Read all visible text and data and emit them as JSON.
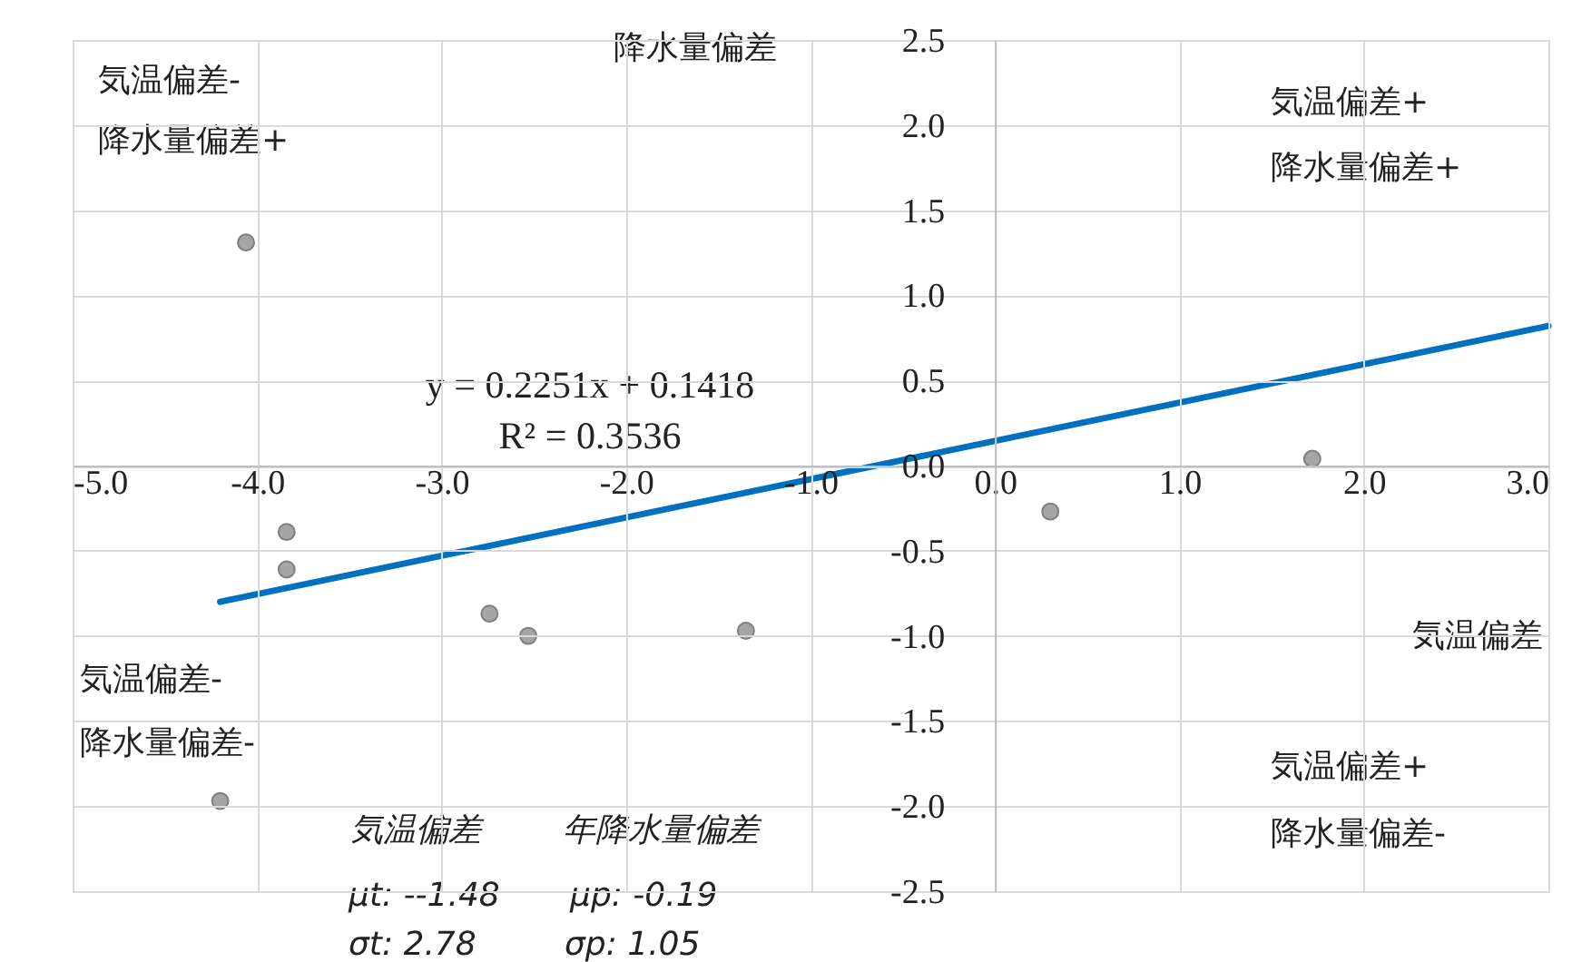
{
  "chart_data": {
    "type": "scatter",
    "xlabel": "気温偏差",
    "ylabel": "降水量偏差",
    "xlim": [
      -5,
      3
    ],
    "ylim": [
      -2.5,
      2.5
    ],
    "xticks": [
      {
        "value": -5,
        "label": "-5.0"
      },
      {
        "value": -4,
        "label": "-4.0"
      },
      {
        "value": -3,
        "label": "-3.0"
      },
      {
        "value": -2,
        "label": "-2.0"
      },
      {
        "value": -1,
        "label": "-1.0"
      },
      {
        "value": 0,
        "label": "0.0"
      },
      {
        "value": 1,
        "label": "1.0"
      },
      {
        "value": 2,
        "label": "2.0"
      },
      {
        "value": 3,
        "label": "3.0"
      }
    ],
    "yticks": [
      {
        "value": -2.5,
        "label": "-2.5"
      },
      {
        "value": -2,
        "label": "-2.0"
      },
      {
        "value": -1.5,
        "label": "-1.5"
      },
      {
        "value": -1,
        "label": "-1.0"
      },
      {
        "value": -0.5,
        "label": "-0.5"
      },
      {
        "value": 0,
        "label": "0.0"
      },
      {
        "value": 0.5,
        "label": "0.5"
      },
      {
        "value": 1,
        "label": "1.0"
      },
      {
        "value": 1.5,
        "label": "1.5"
      },
      {
        "value": 2,
        "label": "2.0"
      },
      {
        "value": 2.5,
        "label": "2.5"
      }
    ],
    "grid": true,
    "marker": "circle",
    "series": [
      {
        "color": "#a5a5a5",
        "x": [
          -4.06,
          -3.84,
          -3.84,
          -2.74,
          -2.53,
          -1.35,
          0.3,
          1.72,
          -4.2
        ],
        "values": [
          1.31,
          -0.39,
          -0.61,
          -0.87,
          -1.0,
          -0.97,
          -0.27,
          0.04,
          -1.97
        ]
      },
      {
        "type": "line",
        "marker": "none",
        "color": "#0070c0",
        "x": [
          -4.2,
          3
        ],
        "values": [
          -0.8,
          0.82
        ]
      }
    ],
    "annotations": [
      "気温偏差-",
      "降水量偏差+",
      "気温偏差+",
      "降水量偏差+",
      "気温偏差-",
      "降水量偏差-",
      "気温偏差+",
      "降水量偏差-",
      "y = 0.2251x + 0.1418",
      "R² = 0.3536",
      "気温偏差",
      "年降水量偏差",
      "μt: --1.48",
      "μp: -0.19",
      "σt: 2.78",
      "σp: 1.05"
    ]
  }
}
